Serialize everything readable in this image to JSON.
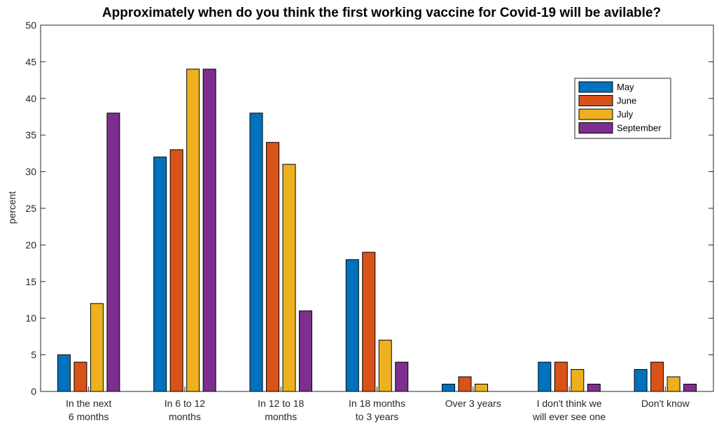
{
  "chart_data": {
    "type": "bar",
    "title": "Approximately when do you think the first working vaccine for Covid-19 will be avilable?",
    "xlabel": "",
    "ylabel": "percent",
    "ylim": [
      0,
      50
    ],
    "yticks": [
      "0",
      "5",
      "10",
      "15",
      "20",
      "25",
      "30",
      "35",
      "40",
      "45",
      "50"
    ],
    "grid": false,
    "legend_position": "top-right",
    "categories": [
      [
        "In the next",
        "6 months"
      ],
      [
        "In 6 to 12",
        "months"
      ],
      [
        "In 12 to 18",
        "months"
      ],
      [
        "In 18 months",
        "to 3 years"
      ],
      [
        "Over 3 years"
      ],
      [
        "I don't think we",
        "will ever see one"
      ],
      [
        "Don't know"
      ]
    ],
    "series": [
      {
        "name": "May",
        "color": "#0072BD",
        "values": [
          5,
          32,
          38,
          18,
          1,
          4,
          3
        ]
      },
      {
        "name": "June",
        "color": "#D95319",
        "values": [
          4,
          33,
          34,
          19,
          2,
          4,
          4
        ]
      },
      {
        "name": "July",
        "color": "#EDB120",
        "values": [
          12,
          44,
          31,
          7,
          1,
          3,
          2
        ]
      },
      {
        "name": "September",
        "color": "#7E2F8E",
        "values": [
          38,
          44,
          11,
          4,
          0,
          1,
          1
        ]
      }
    ]
  }
}
